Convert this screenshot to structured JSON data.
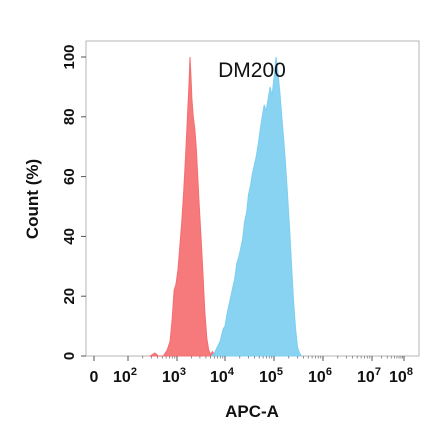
{
  "chart_data": {
    "type": "area",
    "title": "DM200",
    "xlabel": "APC-A",
    "ylabel": "Count  (%)",
    "x_scale": "biexponential",
    "xlim": [
      0,
      100000000
    ],
    "ylim": [
      0,
      100
    ],
    "x_tick_labels": [
      {
        "base": "0",
        "exp": ""
      },
      {
        "base": "10",
        "exp": "2"
      },
      {
        "base": "10",
        "exp": "3"
      },
      {
        "base": "10",
        "exp": "4"
      },
      {
        "base": "10",
        "exp": "5"
      },
      {
        "base": "10",
        "exp": "6"
      },
      {
        "base": "10",
        "exp": "7"
      },
      {
        "base": "10",
        "exp": "8"
      }
    ],
    "y_ticks": [
      0,
      20,
      40,
      60,
      80,
      100
    ],
    "grid": false,
    "series": [
      {
        "color": "#f56e70",
        "points": [
          [
            2.45,
            0
          ],
          [
            2.55,
            1
          ],
          [
            2.62,
            0
          ],
          [
            2.72,
            0
          ],
          [
            2.8,
            2
          ],
          [
            2.86,
            5
          ],
          [
            2.9,
            12
          ],
          [
            2.94,
            22
          ],
          [
            2.98,
            24
          ],
          [
            3.02,
            29
          ],
          [
            3.06,
            37
          ],
          [
            3.1,
            45
          ],
          [
            3.14,
            55
          ],
          [
            3.18,
            67
          ],
          [
            3.22,
            81
          ],
          [
            3.25,
            91
          ],
          [
            3.27,
            100
          ],
          [
            3.29,
            94
          ],
          [
            3.31,
            86
          ],
          [
            3.34,
            80
          ],
          [
            3.37,
            76
          ],
          [
            3.4,
            70
          ],
          [
            3.43,
            61
          ],
          [
            3.46,
            51
          ],
          [
            3.5,
            40
          ],
          [
            3.54,
            28
          ],
          [
            3.58,
            15
          ],
          [
            3.62,
            6
          ],
          [
            3.66,
            2
          ],
          [
            3.7,
            0.5
          ],
          [
            3.74,
            1.5
          ],
          [
            3.78,
            0.5
          ],
          [
            3.84,
            0
          ]
        ]
      },
      {
        "color": "#7dcff0",
        "points": [
          [
            3.72,
            0
          ],
          [
            3.78,
            1
          ],
          [
            3.84,
            3
          ],
          [
            3.9,
            5
          ],
          [
            3.96,
            9
          ],
          [
            4.0,
            10
          ],
          [
            4.04,
            14
          ],
          [
            4.08,
            17
          ],
          [
            4.12,
            20
          ],
          [
            4.16,
            23
          ],
          [
            4.2,
            26
          ],
          [
            4.24,
            31
          ],
          [
            4.28,
            33
          ],
          [
            4.32,
            36
          ],
          [
            4.36,
            39
          ],
          [
            4.4,
            45
          ],
          [
            4.44,
            48
          ],
          [
            4.48,
            54
          ],
          [
            4.52,
            57
          ],
          [
            4.56,
            61
          ],
          [
            4.6,
            64
          ],
          [
            4.64,
            67
          ],
          [
            4.68,
            71
          ],
          [
            4.72,
            76
          ],
          [
            4.76,
            80
          ],
          [
            4.8,
            84
          ],
          [
            4.84,
            82
          ],
          [
            4.88,
            86
          ],
          [
            4.92,
            90
          ],
          [
            4.96,
            87
          ],
          [
            5.0,
            93
          ],
          [
            5.04,
            100
          ],
          [
            5.08,
            95
          ],
          [
            5.12,
            88
          ],
          [
            5.16,
            80
          ],
          [
            5.2,
            72
          ],
          [
            5.24,
            63
          ],
          [
            5.28,
            53
          ],
          [
            5.32,
            42
          ],
          [
            5.36,
            30
          ],
          [
            5.4,
            18
          ],
          [
            5.44,
            9
          ],
          [
            5.48,
            3
          ],
          [
            5.52,
            1
          ],
          [
            5.56,
            0
          ]
        ]
      }
    ]
  }
}
